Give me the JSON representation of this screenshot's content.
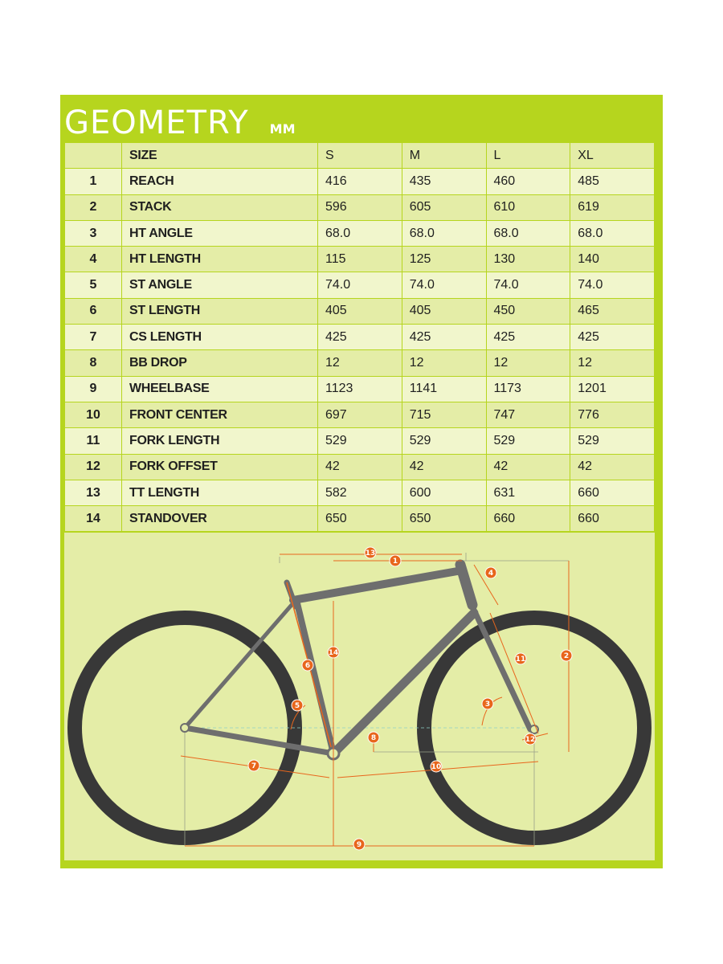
{
  "title": "GEOMETRY",
  "unit": "MM",
  "table": {
    "header": {
      "index": "",
      "name": "SIZE",
      "sizes": [
        "S",
        "M",
        "L",
        "XL"
      ]
    },
    "rows": [
      {
        "index": "1",
        "name": "REACH",
        "values": [
          "416",
          "435",
          "460",
          "485"
        ]
      },
      {
        "index": "2",
        "name": "STACK",
        "values": [
          "596",
          "605",
          "610",
          "619"
        ]
      },
      {
        "index": "3",
        "name": "HT ANGLE",
        "values": [
          "68.0",
          "68.0",
          "68.0",
          "68.0"
        ]
      },
      {
        "index": "4",
        "name": "HT LENGTH",
        "values": [
          "115",
          "125",
          "130",
          "140"
        ]
      },
      {
        "index": "5",
        "name": "ST ANGLE",
        "values": [
          "74.0",
          "74.0",
          "74.0",
          "74.0"
        ]
      },
      {
        "index": "6",
        "name": "ST LENGTH",
        "values": [
          "405",
          "405",
          "450",
          "465"
        ]
      },
      {
        "index": "7",
        "name": "CS LENGTH",
        "values": [
          "425",
          "425",
          "425",
          "425"
        ]
      },
      {
        "index": "8",
        "name": "BB DROP",
        "values": [
          "12",
          "12",
          "12",
          "12"
        ]
      },
      {
        "index": "9",
        "name": "WHEELBASE",
        "values": [
          "1123",
          "1141",
          "1173",
          "1201"
        ]
      },
      {
        "index": "10",
        "name": "FRONT CENTER",
        "values": [
          "697",
          "715",
          "747",
          "776"
        ]
      },
      {
        "index": "11",
        "name": "FORK LENGTH",
        "values": [
          "529",
          "529",
          "529",
          "529"
        ]
      },
      {
        "index": "12",
        "name": "FORK OFFSET",
        "values": [
          "42",
          "42",
          "42",
          "42"
        ]
      },
      {
        "index": "13",
        "name": "TT LENGTH",
        "values": [
          "582",
          "600",
          "631",
          "660"
        ]
      },
      {
        "index": "14",
        "name": "STANDOVER",
        "values": [
          "650",
          "650",
          "660",
          "660"
        ]
      }
    ]
  },
  "diagram": {
    "markers": [
      "1",
      "2",
      "3",
      "4",
      "5",
      "6",
      "7",
      "8",
      "9",
      "10",
      "11",
      "12",
      "13",
      "14"
    ]
  },
  "colors": {
    "panel": "#b6d51e",
    "row_dark": "#e4eda7",
    "row_light": "#f1f6cc",
    "marker": "#e8661c",
    "frame": "#6e6e6e",
    "tire": "#383838"
  }
}
